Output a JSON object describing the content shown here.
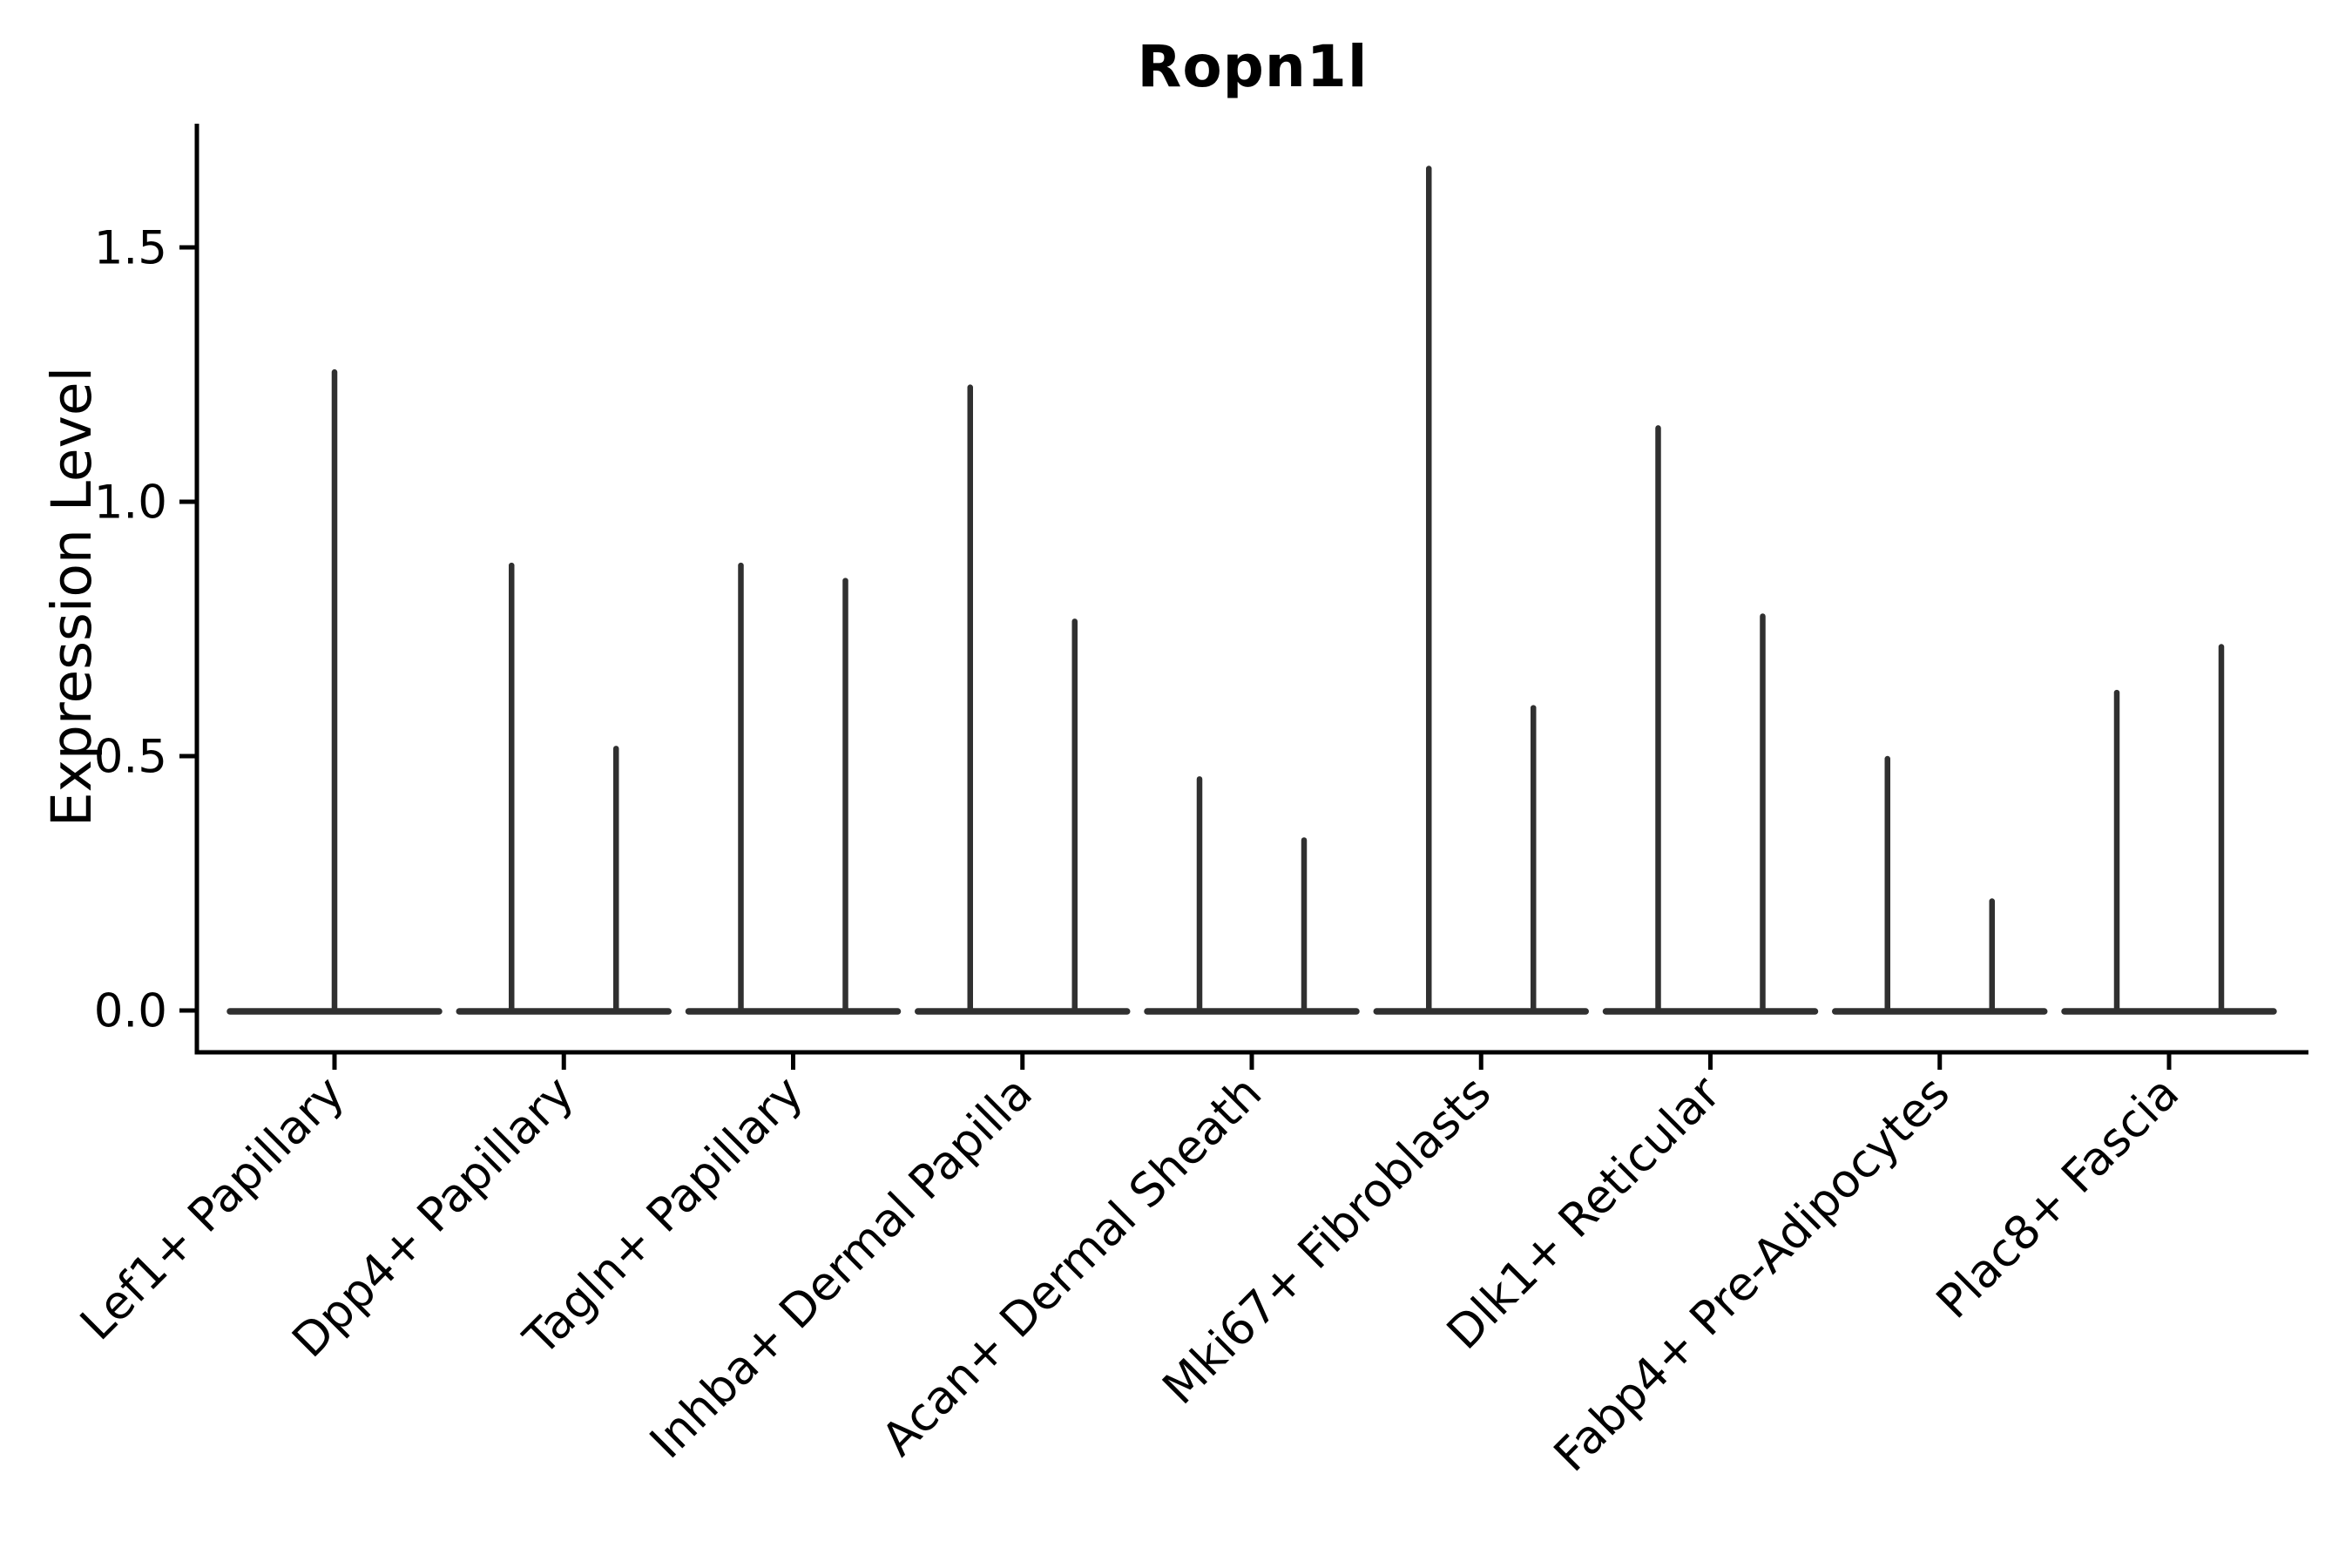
{
  "chart_data": {
    "type": "violin",
    "title": "Ropn1l",
    "ylabel": "Expression Level",
    "xlabel": "",
    "grid": false,
    "legend": "none",
    "background_color": "#ffffff",
    "ytick_labels": [
      "0.0",
      "0.5",
      "1.0",
      "1.5"
    ],
    "ytick_values": [
      0.0,
      0.5,
      1.0,
      1.5
    ],
    "ylim": [
      -0.08,
      1.75
    ],
    "categories": [
      "Lef1+ Papillary",
      "Dpp4+ Papillary",
      "Tagln+ Papillary",
      "Inhba+ Dermal Papilla",
      "Acan+ Dermal Sheath",
      "Mki67+ Fibroblasts",
      "Dlk1+ Reticular",
      "Fabp4+ Pre-Adipocytes",
      "Plac8+ Fascia"
    ],
    "series": [
      {
        "category": "Lef1+ Papillary",
        "violin_maxima": [
          1.26
        ]
      },
      {
        "category": "Dpp4+ Papillary",
        "violin_maxima": [
          0.88,
          0.52
        ]
      },
      {
        "category": "Tagln+ Papillary",
        "violin_maxima": [
          0.88,
          0.85
        ]
      },
      {
        "category": "Inhba+ Dermal Papilla",
        "violin_maxima": [
          1.23,
          0.77
        ]
      },
      {
        "category": "Acan+ Dermal Sheath",
        "violin_maxima": [
          0.46,
          0.34
        ]
      },
      {
        "category": "Mki67+ Fibroblasts",
        "violin_maxima": [
          1.66,
          0.6
        ]
      },
      {
        "category": "Dlk1+ Reticular",
        "violin_maxima": [
          1.15,
          0.78
        ]
      },
      {
        "category": "Fabp4+ Pre-Adipocytes",
        "violin_maxima": [
          0.5,
          0.22
        ]
      },
      {
        "category": "Plac8+ Fascia",
        "violin_maxima": [
          0.63,
          0.72
        ]
      }
    ],
    "baseline_value": 0.0,
    "violin_description": "near-zero-width violins: flat base line at 0 with thin vertical spike(s) up to the max expression; single full-width violin for first category, paired half-width violins for the rest",
    "colors": {
      "violin_line": "#303030",
      "axis": "#000000",
      "text": "#000000"
    }
  }
}
